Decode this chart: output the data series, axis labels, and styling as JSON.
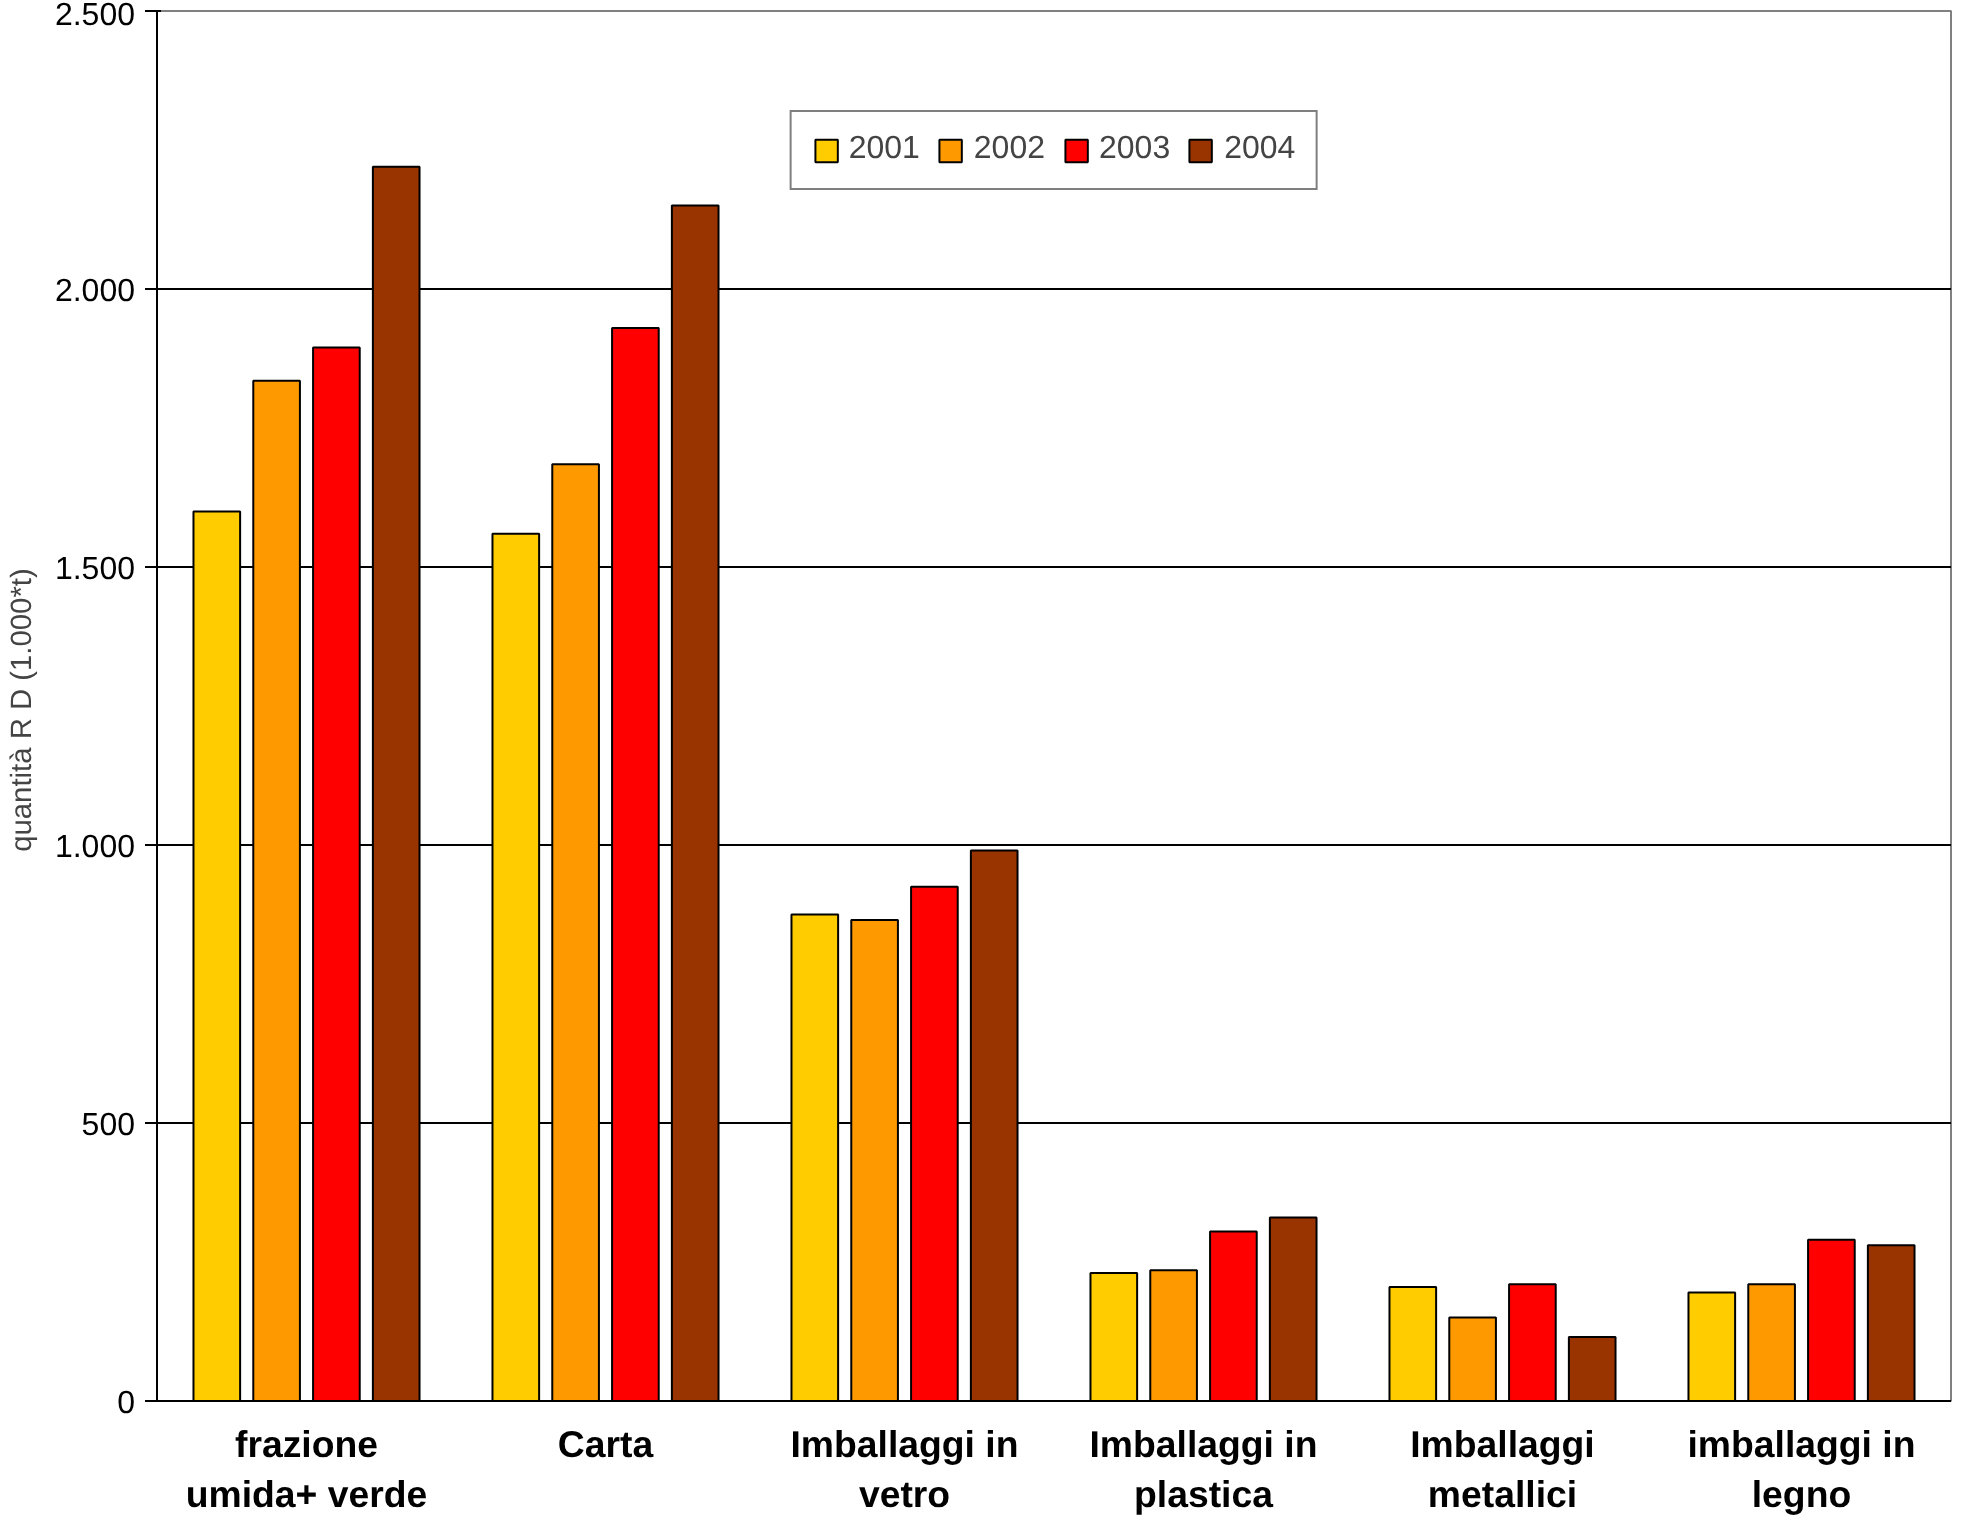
{
  "chart_data": {
    "type": "bar",
    "ylabel": "quantità R D  (1.000*t)",
    "categories": [
      "frazione umida+ verde",
      "Carta",
      "Imballaggi in vetro",
      "Imballaggi in plastica",
      "Imballaggi metallici",
      "imballaggi in legno"
    ],
    "series": [
      {
        "name": "2001",
        "color": "#ffcc00",
        "values": [
          1600,
          1560,
          875,
          230,
          205,
          195
        ]
      },
      {
        "name": "2002",
        "color": "#ff9900",
        "values": [
          1835,
          1685,
          865,
          235,
          150,
          210
        ]
      },
      {
        "name": "2003",
        "color": "#ff0000",
        "values": [
          1895,
          1930,
          925,
          305,
          210,
          290
        ]
      },
      {
        "name": "2004",
        "color": "#993300",
        "values": [
          2220,
          2150,
          990,
          330,
          115,
          280
        ]
      }
    ],
    "ylim": [
      0,
      2500
    ],
    "yticks": [
      0,
      {
        "value": 500,
        "label": "500"
      },
      {
        "value": 1000,
        "label": "1.000"
      },
      {
        "value": 1500,
        "label": "1.500"
      },
      {
        "value": 2000,
        "label": "2.000"
      },
      {
        "value": 2500,
        "label": "2.500"
      }
    ],
    "grid": "y",
    "legend": "top"
  }
}
